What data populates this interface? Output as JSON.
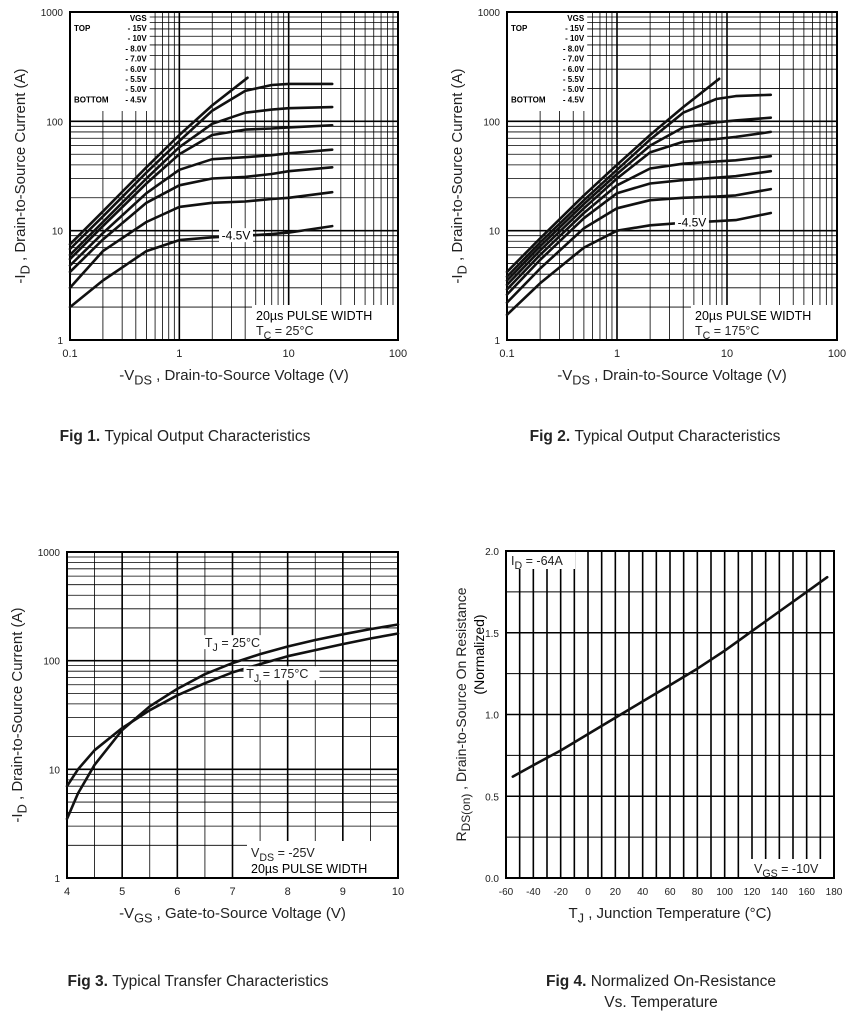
{
  "chart_data": [
    {
      "id": "fig1",
      "type": "line",
      "caption_prefix": "Fig 1.",
      "caption": "Typical Output Characteristics",
      "xlabel_prefix": "-V",
      "xlabel_sub": "DS",
      "xlabel_rest": " , Drain-to-Source Voltage (V)",
      "ylabel_prefix": "-I",
      "ylabel_sub": "D",
      "ylabel_rest": " , Drain-to-Source Current (A)",
      "xscale": "log",
      "yscale": "log",
      "xlim": [
        0.1,
        100
      ],
      "ylim": [
        1,
        1000
      ],
      "xticks": [
        "0.1",
        "1",
        "10",
        "100"
      ],
      "yticks": [
        "1",
        "10",
        "100",
        "1000"
      ],
      "legend": {
        "header": "VGS",
        "top_label": "TOP",
        "bottom_label": "BOTTOM",
        "entries": [
          "- 15V",
          "- 10V",
          "- 8.0V",
          "- 7.0V",
          "- 6.0V",
          "- 5.5V",
          "- 5.0V",
          "- 4.5V"
        ],
        "placement": "top-left"
      },
      "annotations": [
        "20µs PULSE WIDTH",
        "T_C = 25°C"
      ],
      "curve_label": "-4.5V",
      "series": [
        {
          "name": "VGS=-15V",
          "x": [
            0.1,
            0.2,
            0.5,
            1,
            2,
            4.2
          ],
          "y": [
            7.5,
            15,
            38,
            75,
            140,
            250
          ]
        },
        {
          "name": "VGS=-10V",
          "x": [
            0.1,
            0.2,
            0.5,
            1,
            2,
            4,
            7,
            10,
            25
          ],
          "y": [
            6.8,
            13.5,
            34,
            66,
            125,
            190,
            215,
            220,
            220
          ]
        },
        {
          "name": "VGS=-8.0V",
          "x": [
            0.1,
            0.2,
            0.5,
            1,
            2,
            4,
            7,
            10,
            25
          ],
          "y": [
            6,
            12,
            30,
            58,
            95,
            120,
            128,
            132,
            135
          ]
        },
        {
          "name": "VGS=-7.0V",
          "x": [
            0.1,
            0.2,
            0.5,
            1,
            2,
            4,
            7,
            10,
            25
          ],
          "y": [
            5.5,
            11,
            27,
            50,
            75,
            84,
            86,
            88,
            92
          ]
        },
        {
          "name": "VGS=-6.0V",
          "x": [
            0.1,
            0.2,
            0.5,
            1,
            2,
            4,
            7,
            10,
            25
          ],
          "y": [
            4.8,
            9.5,
            22,
            36,
            45,
            47,
            49,
            51,
            55
          ]
        },
        {
          "name": "VGS=-5.5V",
          "x": [
            0.1,
            0.2,
            0.5,
            1,
            2,
            4,
            7,
            10,
            25
          ],
          "y": [
            4.2,
            8.3,
            18,
            26,
            30,
            31,
            33,
            35,
            38
          ]
        },
        {
          "name": "VGS=-5.0V",
          "x": [
            0.1,
            0.2,
            0.5,
            1,
            2,
            4,
            7,
            10,
            25
          ],
          "y": [
            3,
            6.5,
            12,
            16.5,
            18,
            18.5,
            19.5,
            20,
            22.5
          ]
        },
        {
          "name": "VGS=-4.5V",
          "x": [
            0.1,
            0.2,
            0.5,
            1,
            2,
            4,
            7,
            10,
            25
          ],
          "y": [
            2,
            3.5,
            6.5,
            8.2,
            8.7,
            9,
            9.3,
            9.6,
            11
          ]
        }
      ]
    },
    {
      "id": "fig2",
      "type": "line",
      "caption_prefix": "Fig 2.",
      "caption": "Typical Output Characteristics",
      "xlabel_prefix": "-V",
      "xlabel_sub": "DS",
      "xlabel_rest": " , Drain-to-Source Voltage (V)",
      "ylabel_prefix": "-I",
      "ylabel_sub": "D",
      "ylabel_rest": " , Drain-to-Source Current (A)",
      "xscale": "log",
      "yscale": "log",
      "xlim": [
        0.1,
        100
      ],
      "ylim": [
        1,
        1000
      ],
      "xticks": [
        "0.1",
        "1",
        "10",
        "100"
      ],
      "yticks": [
        "1",
        "10",
        "100",
        "1000"
      ],
      "legend": {
        "header": "VGS",
        "top_label": "TOP",
        "bottom_label": "BOTTOM",
        "entries": [
          "- 15V",
          "- 10V",
          "- 8.0V",
          "- 7.0V",
          "- 6.0V",
          "- 5.5V",
          "- 5.0V",
          "- 4.5V"
        ],
        "placement": "top-left"
      },
      "annotations": [
        "20µs PULSE WIDTH",
        "T_C = 175°C"
      ],
      "curve_label": "-4.5V",
      "series": [
        {
          "name": "VGS=-15V",
          "x": [
            0.1,
            0.2,
            0.5,
            1,
            2,
            4,
            8.5
          ],
          "y": [
            4.2,
            8.5,
            21,
            40,
            75,
            135,
            245
          ]
        },
        {
          "name": "VGS=-10V",
          "x": [
            0.1,
            0.2,
            0.5,
            1,
            2,
            4,
            8,
            12,
            25
          ],
          "y": [
            3.8,
            7.8,
            19,
            36,
            68,
            120,
            160,
            170,
            175
          ]
        },
        {
          "name": "VGS=-8.0V",
          "x": [
            0.1,
            0.2,
            0.5,
            1,
            2,
            4,
            8,
            12,
            25
          ],
          "y": [
            3.5,
            7.2,
            17.5,
            33,
            60,
            88,
            98,
            102,
            108
          ]
        },
        {
          "name": "VGS=-7.0V",
          "x": [
            0.1,
            0.2,
            0.5,
            1,
            2,
            4,
            8,
            12,
            25
          ],
          "y": [
            3.2,
            6.6,
            16,
            30,
            52,
            65,
            69,
            72,
            80
          ]
        },
        {
          "name": "VGS=-6.0V",
          "x": [
            0.1,
            0.2,
            0.5,
            1,
            2,
            4,
            8,
            12,
            25
          ],
          "y": [
            2.9,
            6,
            14.5,
            26,
            37,
            41,
            43,
            44,
            48
          ]
        },
        {
          "name": "VGS=-5.5V",
          "x": [
            0.1,
            0.2,
            0.5,
            1,
            2,
            4,
            8,
            12,
            25
          ],
          "y": [
            2.6,
            5.4,
            13,
            22,
            27,
            29,
            30.5,
            31.5,
            35
          ]
        },
        {
          "name": "VGS=-5.0V",
          "x": [
            0.1,
            0.2,
            0.5,
            1,
            2,
            4,
            8,
            12,
            25
          ],
          "y": [
            2.2,
            4.5,
            10.5,
            16,
            19,
            20,
            20.5,
            21,
            24
          ]
        },
        {
          "name": "VGS=-4.5V",
          "x": [
            0.1,
            0.2,
            0.5,
            1,
            2,
            4,
            8,
            12,
            25
          ],
          "y": [
            1.7,
            3.3,
            7,
            10,
            11.2,
            11.8,
            12.2,
            12.5,
            14.5
          ]
        }
      ]
    },
    {
      "id": "fig3",
      "type": "line",
      "caption_prefix": "Fig 3.",
      "caption": "Typical Transfer Characteristics",
      "xlabel_prefix": "-V",
      "xlabel_sub": "GS",
      "xlabel_rest": " , Gate-to-Source Voltage (V)",
      "ylabel_prefix": "-I",
      "ylabel_sub": "D",
      "ylabel_rest": " , Drain-to-Source Current (A)",
      "xscale": "linear",
      "yscale": "log",
      "xlim": [
        4,
        10
      ],
      "ylim": [
        1,
        1000
      ],
      "xticks": [
        "4",
        "5",
        "6",
        "7",
        "8",
        "9",
        "10"
      ],
      "yticks": [
        "1",
        "10",
        "100",
        "1000"
      ],
      "annotations": [
        "V_DS = -25V",
        "20µs PULSE WIDTH"
      ],
      "series": [
        {
          "name": "TJ = 25°C",
          "x": [
            4,
            4.2,
            4.5,
            5,
            5.5,
            6,
            6.5,
            7,
            7.5,
            8,
            8.5,
            9,
            9.5,
            10
          ],
          "y": [
            3.5,
            6,
            11,
            23,
            38,
            55,
            75,
            95,
            115,
            135,
            155,
            175,
            195,
            215
          ]
        },
        {
          "name": "TJ = 175°C",
          "x": [
            4,
            4.2,
            4.5,
            5,
            5.5,
            6,
            6.5,
            7,
            7.5,
            8,
            8.5,
            9,
            9.5,
            10
          ],
          "y": [
            7,
            10,
            15,
            24,
            35,
            48,
            62,
            78,
            93,
            110,
            125,
            142,
            160,
            178
          ]
        }
      ],
      "series_labels": [
        "T_J = 25°C",
        "T_J = 175°C"
      ]
    },
    {
      "id": "fig4",
      "type": "line",
      "caption_prefix": "Fig 4.",
      "caption": "Normalized On-Resistance",
      "caption_line2": "Vs. Temperature",
      "xlabel_prefix": "T",
      "xlabel_sub": "J",
      "xlabel_rest": " , Junction Temperature (°C)",
      "ylabel_prefix": "R",
      "ylabel_sub": "DS(on)",
      "ylabel_rest": " ,  Drain-to-Source On Resistance",
      "ylabel_line2": "(Normalized)",
      "xscale": "linear",
      "yscale": "linear",
      "xlim": [
        -60,
        180
      ],
      "ylim": [
        0.0,
        2.0
      ],
      "xticks": [
        "-60",
        "-40",
        "-20",
        "0",
        "20",
        "40",
        "60",
        "80",
        "100",
        "120",
        "140",
        "160",
        "180"
      ],
      "yticks": [
        "0.0",
        "0.5",
        "1.0",
        "1.5",
        "2.0"
      ],
      "annotations": [
        "I_D = -64A",
        "V_GS = -10V"
      ],
      "series": [
        {
          "name": "RDS(on)",
          "x": [
            -55,
            -40,
            -20,
            0,
            20,
            40,
            60,
            80,
            100,
            120,
            140,
            160,
            175
          ],
          "y": [
            0.62,
            0.69,
            0.78,
            0.88,
            0.98,
            1.08,
            1.18,
            1.28,
            1.39,
            1.51,
            1.63,
            1.75,
            1.84
          ]
        }
      ]
    }
  ]
}
